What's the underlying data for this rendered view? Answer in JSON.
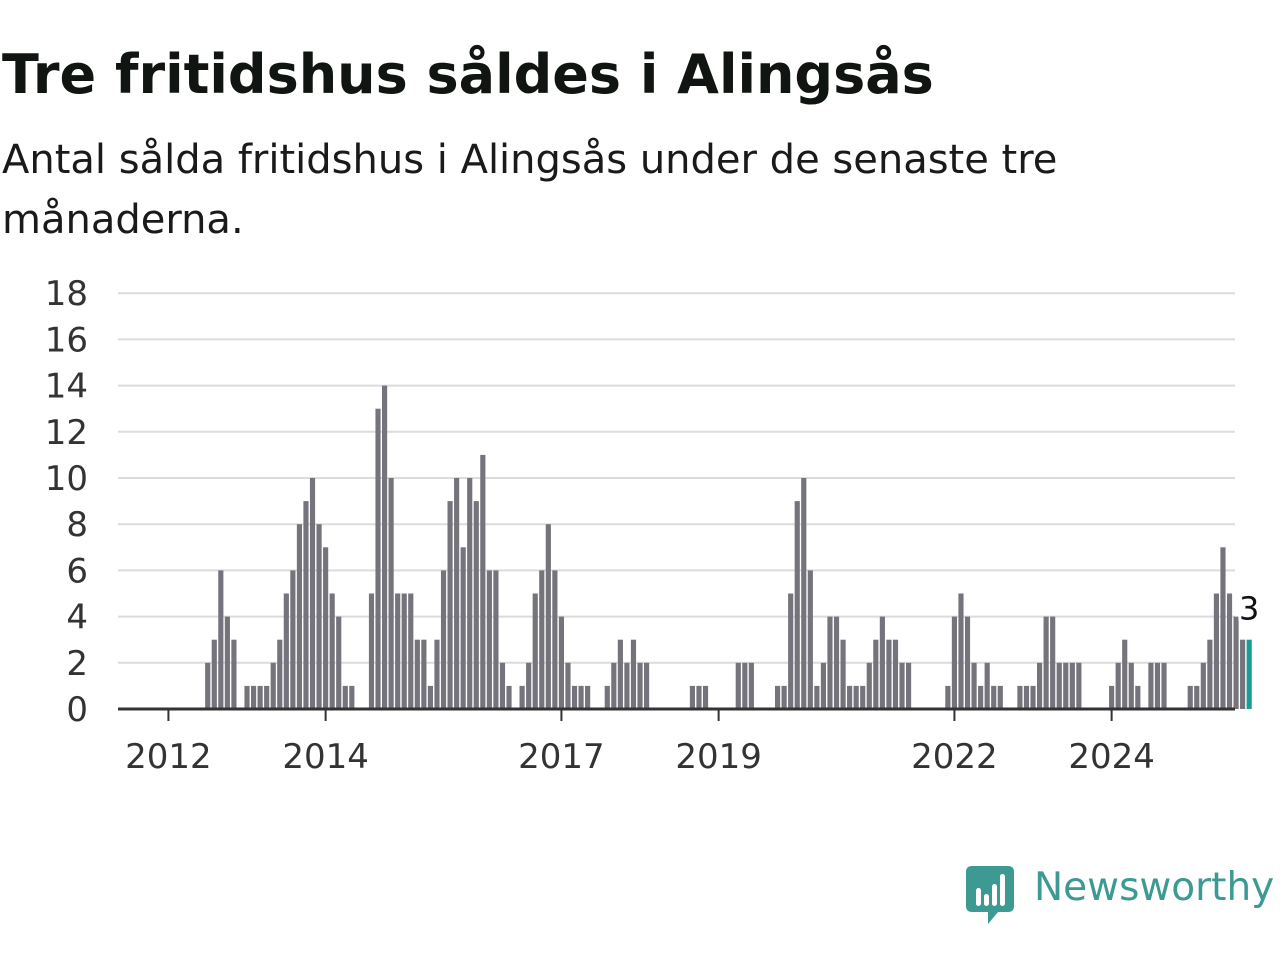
{
  "header": {
    "title": "Tre fritidshus såldes i Alingsås",
    "subtitle": "Antal sålda fritidshus i Alingsås under de senaste tre månaderna."
  },
  "brand": {
    "name": "Newsworthy",
    "icon": "newsworthy-chart-bubble-icon",
    "color": "#3d9a93"
  },
  "colors": {
    "bar": "#75737b",
    "highlight": "#1a9c94",
    "grid": "#dcdcdc",
    "axis": "#333333"
  },
  "chart_data": {
    "type": "bar",
    "title": "Tre fritidshus såldes i Alingsås",
    "subtitle": "Antal sålda fritidshus i Alingsås under de senaste tre månaderna.",
    "xlabel": "",
    "ylabel": "",
    "ylim": [
      0,
      18
    ],
    "yticks": [
      0,
      2,
      4,
      6,
      8,
      10,
      12,
      14,
      16,
      18
    ],
    "xticks": [
      "2012",
      "2014",
      "2017",
      "2019",
      "2022",
      "2024"
    ],
    "grid": true,
    "legend": "none",
    "start": "2011-06",
    "frequency": "monthly",
    "values": [
      0,
      0,
      0,
      0,
      0,
      0,
      0,
      0,
      0,
      0,
      0,
      0,
      0,
      2,
      3,
      6,
      4,
      3,
      0,
      1,
      1,
      1,
      1,
      2,
      3,
      5,
      6,
      8,
      9,
      10,
      8,
      7,
      5,
      4,
      1,
      1,
      0,
      0,
      5,
      13,
      14,
      10,
      5,
      5,
      5,
      3,
      3,
      1,
      3,
      6,
      9,
      10,
      7,
      10,
      9,
      11,
      6,
      6,
      2,
      1,
      0,
      1,
      2,
      5,
      6,
      8,
      6,
      4,
      2,
      1,
      1,
      1,
      0,
      0,
      1,
      2,
      3,
      2,
      3,
      2,
      2,
      0,
      0,
      0,
      0,
      0,
      0,
      1,
      1,
      1,
      0,
      0,
      0,
      0,
      2,
      2,
      2,
      0,
      0,
      0,
      1,
      1,
      5,
      9,
      10,
      6,
      1,
      2,
      4,
      4,
      3,
      1,
      1,
      1,
      2,
      3,
      4,
      3,
      3,
      2,
      2,
      0,
      0,
      0,
      0,
      0,
      1,
      4,
      5,
      4,
      2,
      1,
      2,
      1,
      1,
      0,
      0,
      1,
      1,
      1,
      2,
      4,
      4,
      2,
      2,
      2,
      2,
      0,
      0,
      0,
      0,
      1,
      2,
      3,
      2,
      1,
      0,
      2,
      2,
      2,
      0,
      0,
      0,
      1,
      1,
      2,
      3,
      5,
      7,
      5,
      4,
      3,
      3
    ],
    "highlight_label": "3"
  }
}
